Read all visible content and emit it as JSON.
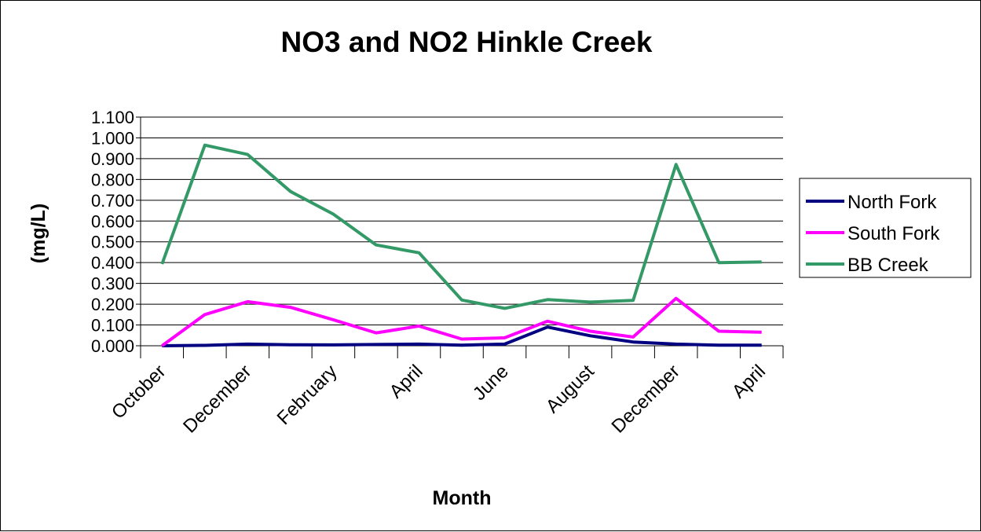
{
  "chart_data": {
    "type": "line",
    "title": "NO3 and NO2 Hinkle Creek",
    "xlabel": "Month",
    "ylabel": "(mg/L)",
    "ylim": [
      0,
      1.1
    ],
    "yticks": [
      "0.000",
      "0.100",
      "0.200",
      "0.300",
      "0.400",
      "0.500",
      "0.600",
      "0.700",
      "0.800",
      "0.900",
      "1.000",
      "1.100"
    ],
    "x_tick_labels": [
      "October",
      "December",
      "February",
      "April",
      "June",
      "August",
      "December",
      "April"
    ],
    "x_label_every": 2,
    "point_count": 15,
    "grid": "horizontal",
    "legend_position": "right",
    "series": [
      {
        "name": "North Fork",
        "color": "#000080",
        "values": [
          0.0,
          0.002,
          0.008,
          0.005,
          0.004,
          0.006,
          0.008,
          0.003,
          0.008,
          0.09,
          0.048,
          0.018,
          0.008,
          0.003,
          0.003
        ]
      },
      {
        "name": "South Fork",
        "color": "#ff00ff",
        "values": [
          0.0,
          0.15,
          0.212,
          0.185,
          0.125,
          0.062,
          0.095,
          0.032,
          0.038,
          0.118,
          0.07,
          0.042,
          0.228,
          0.07,
          0.065
        ]
      },
      {
        "name": "BB Creek",
        "color": "#339966",
        "values": [
          0.393,
          0.965,
          0.92,
          0.742,
          0.633,
          0.485,
          0.447,
          0.22,
          0.18,
          0.222,
          0.21,
          0.218,
          0.872,
          0.4,
          0.403
        ]
      }
    ]
  }
}
